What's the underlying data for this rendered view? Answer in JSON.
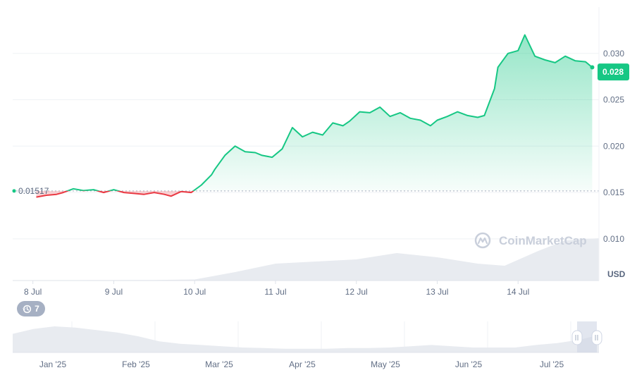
{
  "watermark": "CoinMarketCap",
  "history_badge": {
    "icon": "history-icon",
    "count": "7"
  },
  "chart_data": {
    "type": "area",
    "currency_label": "USD",
    "reference_value": 0.01517,
    "reference_label": "0.01517",
    "current_value": 0.028,
    "current_label": "0.028",
    "ylim": [
      0.0055,
      0.035
    ],
    "y_ticks": [
      {
        "value": 0.01,
        "label": "0.010"
      },
      {
        "value": 0.015,
        "label": "0.015"
      },
      {
        "value": 0.02,
        "label": "0.020"
      },
      {
        "value": 0.025,
        "label": "0.025"
      },
      {
        "value": 0.03,
        "label": "0.030"
      }
    ],
    "x_ticks": [
      "8 Jul",
      "9 Jul",
      "10 Jul",
      "11 Jul",
      "12 Jul",
      "13 Jul",
      "14 Jul"
    ],
    "x_domain": [
      "2025-07-07T18:00",
      "2025-07-15T00:00"
    ],
    "x_tick_times": [
      "2025-07-08T00:00",
      "2025-07-09T00:00",
      "2025-07-10T00:00",
      "2025-07-11T00:00",
      "2025-07-12T00:00",
      "2025-07-13T00:00",
      "2025-07-14T00:00"
    ],
    "price_series": {
      "x": [
        "2025-07-08T01:00",
        "2025-07-08T04:00",
        "2025-07-08T07:00",
        "2025-07-08T09:00",
        "2025-07-08T12:00",
        "2025-07-08T15:00",
        "2025-07-08T18:00",
        "2025-07-08T21:00",
        "2025-07-09T00:00",
        "2025-07-09T03:00",
        "2025-07-09T06:00",
        "2025-07-09T09:00",
        "2025-07-09T12:00",
        "2025-07-09T15:00",
        "2025-07-09T17:00",
        "2025-07-09T20:00",
        "2025-07-09T23:00",
        "2025-07-10T02:00",
        "2025-07-10T05:00",
        "2025-07-10T06:00",
        "2025-07-10T09:00",
        "2025-07-10T12:00",
        "2025-07-10T15:00",
        "2025-07-10T18:00",
        "2025-07-10T20:00",
        "2025-07-10T23:00",
        "2025-07-11T02:00",
        "2025-07-11T05:00",
        "2025-07-11T08:00",
        "2025-07-11T11:00",
        "2025-07-11T14:00",
        "2025-07-11T17:00",
        "2025-07-11T20:00",
        "2025-07-11T22:00",
        "2025-07-12T01:00",
        "2025-07-12T04:00",
        "2025-07-12T07:00",
        "2025-07-12T10:00",
        "2025-07-12T13:00",
        "2025-07-12T16:00",
        "2025-07-12T19:00",
        "2025-07-12T22:00",
        "2025-07-13T00:00",
        "2025-07-13T03:00",
        "2025-07-13T06:00",
        "2025-07-13T09:00",
        "2025-07-13T12:00",
        "2025-07-13T14:00",
        "2025-07-13T17:00",
        "2025-07-13T18:00",
        "2025-07-13T19:00",
        "2025-07-13T21:00",
        "2025-07-14T00:00",
        "2025-07-14T02:00",
        "2025-07-14T05:00",
        "2025-07-14T08:00",
        "2025-07-14T11:00",
        "2025-07-14T14:00",
        "2025-07-14T17:00",
        "2025-07-14T20:00",
        "2025-07-14T22:00"
      ],
      "values": [
        0.0145,
        0.0147,
        0.0148,
        0.015,
        0.0154,
        0.0152,
        0.0153,
        0.015,
        0.0153,
        0.015,
        0.0149,
        0.0148,
        0.015,
        0.0148,
        0.0146,
        0.0151,
        0.015,
        0.0158,
        0.0169,
        0.0175,
        0.019,
        0.02,
        0.0194,
        0.0193,
        0.019,
        0.0188,
        0.0197,
        0.022,
        0.021,
        0.0215,
        0.0212,
        0.0225,
        0.0222,
        0.0227,
        0.0237,
        0.0236,
        0.0242,
        0.0232,
        0.0236,
        0.023,
        0.0228,
        0.0222,
        0.0228,
        0.0232,
        0.0237,
        0.0233,
        0.0231,
        0.0233,
        0.0262,
        0.0285,
        0.029,
        0.03,
        0.0303,
        0.032,
        0.0297,
        0.0293,
        0.029,
        0.0297,
        0.0292,
        0.0291,
        0.0285
      ]
    },
    "volume_series": {
      "x": [
        "2025-07-07T18:00",
        "2025-07-09T12:00",
        "2025-07-10T00:00",
        "2025-07-10T12:00",
        "2025-07-11T00:00",
        "2025-07-11T12:00",
        "2025-07-12T00:00",
        "2025-07-12T12:00",
        "2025-07-13T00:00",
        "2025-07-13T12:00",
        "2025-07-13T20:00",
        "2025-07-14T06:00",
        "2025-07-14T14:00",
        "2025-07-15T00:00"
      ],
      "values": [
        0.3,
        0.5,
        1.0,
        8.0,
        16.0,
        18.0,
        20.0,
        26.0,
        22.0,
        16.0,
        14.0,
        28.0,
        38.0,
        40.0
      ]
    },
    "navigator": {
      "x_ticks": [
        "Jan '25",
        "Feb '25",
        "Mar '25",
        "Apr '25",
        "May '25",
        "Jun '25",
        "Jul '25"
      ],
      "values": [
        0.03,
        0.038,
        0.042,
        0.04,
        0.036,
        0.032,
        0.026,
        0.018,
        0.014,
        0.012,
        0.01,
        0.008,
        0.007,
        0.006,
        0.006,
        0.006,
        0.007,
        0.007,
        0.008,
        0.01,
        0.012,
        0.01,
        0.008,
        0.008,
        0.008,
        0.012,
        0.015,
        0.02,
        0.028
      ]
    }
  }
}
